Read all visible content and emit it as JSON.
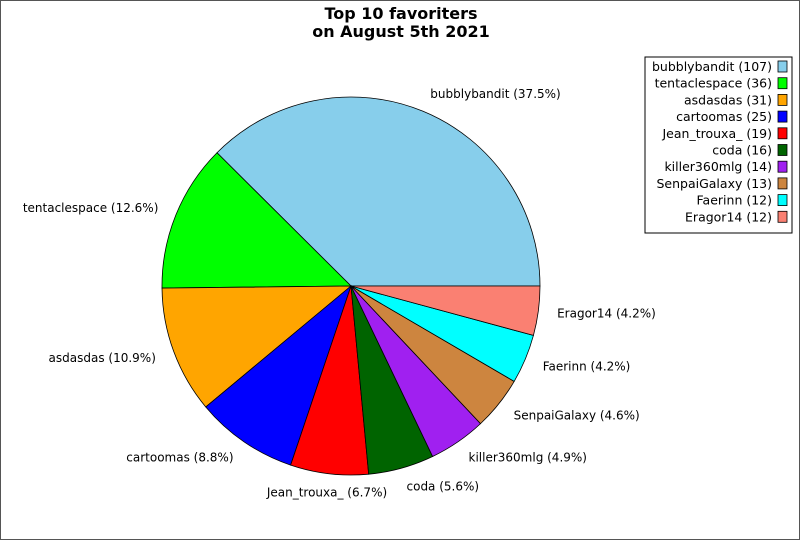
{
  "chart_data": {
    "type": "pie",
    "title": [
      "Top 10 favoriters",
      "on August 5th 2021"
    ],
    "legend_position": "top-right",
    "slices": [
      {
        "name": "bubblybandit",
        "value": 107,
        "label": "bubblybandit (37.5%)",
        "legend": "bubblybandit (107)",
        "color": "#87ceeb"
      },
      {
        "name": "tentaclespace",
        "value": 36,
        "label": "tentaclespace (12.6%)",
        "legend": "tentaclespace (36)",
        "color": "#00ff00"
      },
      {
        "name": "asdasdas",
        "value": 31,
        "label": "asdasdas (10.9%)",
        "legend": "asdasdas (31)",
        "color": "#ffa500"
      },
      {
        "name": "cartoomas",
        "value": 25,
        "label": "cartoomas (8.8%)",
        "legend": "cartoomas (25)",
        "color": "#0000ff"
      },
      {
        "name": "Jean_trouxa_",
        "value": 19,
        "label": "Jean_trouxa_ (6.7%)",
        "legend": "Jean_trouxa_ (19)",
        "color": "#ff0000"
      },
      {
        "name": "coda",
        "value": 16,
        "label": "coda (5.6%)",
        "legend": "coda (16)",
        "color": "#006400"
      },
      {
        "name": "killer360mlg",
        "value": 14,
        "label": "killer360mlg (4.9%)",
        "legend": "killer360mlg (14)",
        "color": "#a020f0"
      },
      {
        "name": "SenpaiGalaxy",
        "value": 13,
        "label": "SenpaiGalaxy (4.6%)",
        "legend": "SenpaiGalaxy (13)",
        "color": "#cd853f"
      },
      {
        "name": "Faerinn",
        "value": 12,
        "label": "Faerinn (4.2%)",
        "legend": "Faerinn (12)",
        "color": "#00ffff"
      },
      {
        "name": "Eragor14",
        "value": 12,
        "label": "Eragor14 (4.2%)",
        "legend": "Eragor14 (12)",
        "color": "#fa8072"
      }
    ]
  }
}
